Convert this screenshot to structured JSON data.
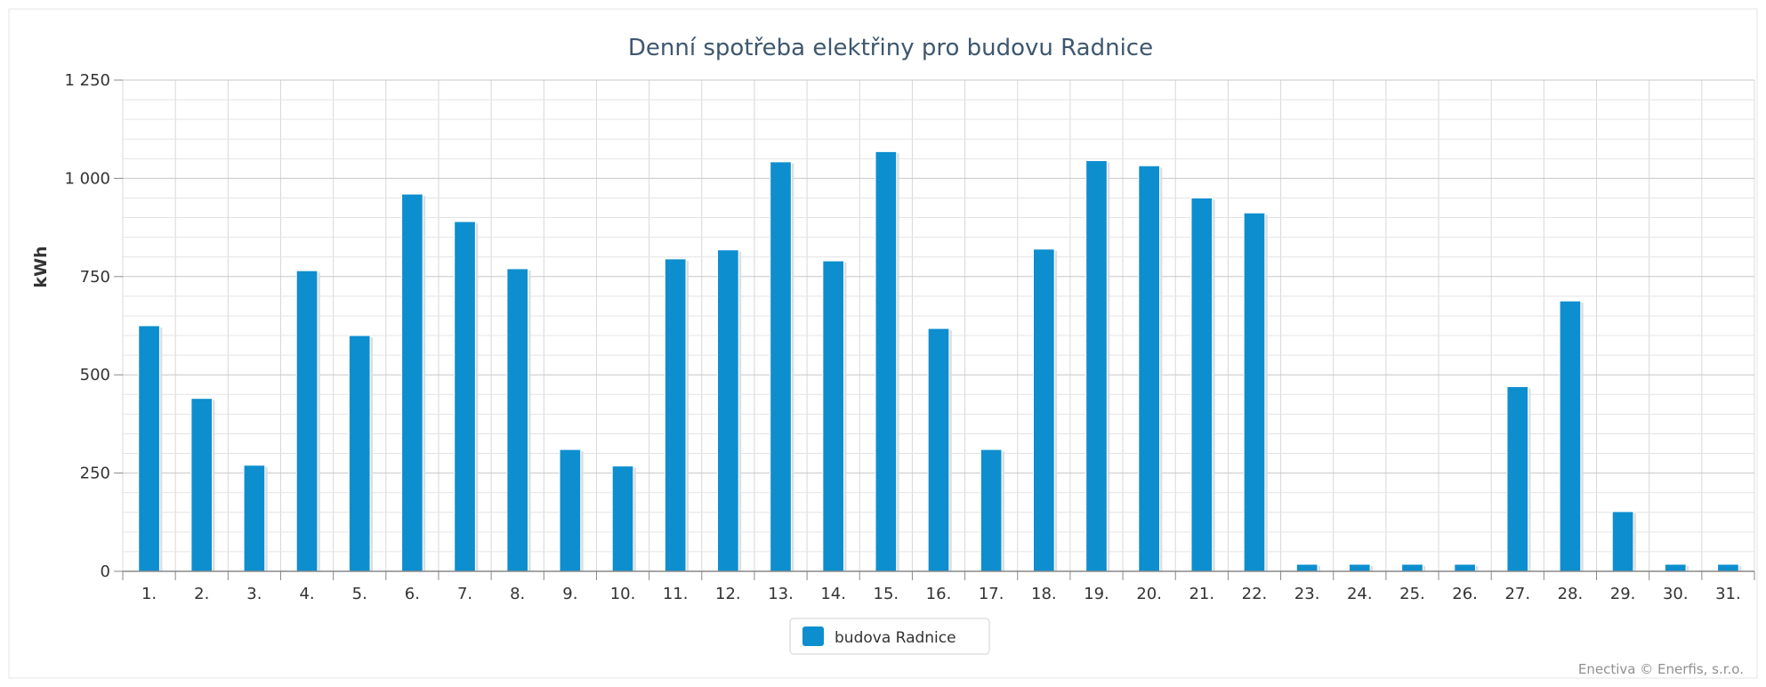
{
  "chart_data": {
    "type": "bar",
    "title": "Denní spotřeba elektřiny pro budovu Radnice",
    "ylabel": "kWh",
    "xlabel": "",
    "ylim": [
      0,
      1250
    ],
    "yticks": [
      0,
      250,
      500,
      750,
      1000,
      1250
    ],
    "ytick_labels": [
      "0",
      "250",
      "500",
      "750",
      "1 000",
      "1 250"
    ],
    "categories": [
      "1.",
      "2.",
      "3.",
      "4.",
      "5.",
      "6.",
      "7.",
      "8.",
      "9.",
      "10.",
      "11.",
      "12.",
      "13.",
      "14.",
      "15.",
      "16.",
      "17.",
      "18.",
      "19.",
      "20.",
      "21.",
      "22.",
      "23.",
      "24.",
      "25.",
      "26.",
      "27.",
      "28.",
      "29.",
      "30.",
      "31."
    ],
    "series": [
      {
        "name": "budova Radnice",
        "color": "#0d8ecf",
        "values": [
          625,
          440,
          270,
          765,
          600,
          960,
          890,
          770,
          310,
          268,
          795,
          818,
          1042,
          790,
          1068,
          618,
          310,
          820,
          1045,
          1032,
          950,
          912,
          18,
          18,
          18,
          18,
          470,
          688,
          152,
          18,
          18
        ]
      }
    ],
    "grid": true,
    "legend_position": "bottom-center",
    "credit": "Enectiva © Enerfis, s.r.o."
  }
}
